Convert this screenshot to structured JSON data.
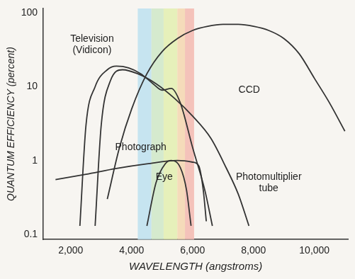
{
  "chart_data": {
    "type": "line",
    "x_label": "WAVELENGTH (angstroms)",
    "y_label": "QUANTUM EFFICIENCY (percent)",
    "log": "y",
    "grid": false,
    "xlim": [
      1100,
      11100
    ],
    "xticks": [
      {
        "value": 2000,
        "label": "2,000"
      },
      {
        "value": 4000,
        "label": "4,000"
      },
      {
        "value": 6000,
        "label": "6,000"
      },
      {
        "value": 8000,
        "label": "8,000"
      },
      {
        "value": 10000,
        "label": "10,000"
      }
    ],
    "ylim": [
      0.085,
      115
    ],
    "yticks": [
      0.1,
      1,
      10,
      100
    ],
    "series": [
      {
        "name": "Television (Vidicon)",
        "color": "#333333",
        "x": [
          2300,
          2500,
          2800,
          3200,
          3500,
          3900,
          4300,
          4700,
          5000,
          5300,
          5600,
          6000,
          6400,
          6650
        ],
        "values": [
          0.13,
          3,
          10,
          17,
          19,
          18,
          15,
          11,
          9,
          9.5,
          6,
          1.5,
          0.4,
          0.13
        ]
      },
      {
        "name": "Photomultiplier tube",
        "color": "#333333",
        "x": [
          2800,
          3000,
          3300,
          3700,
          4200,
          4800,
          5400,
          6000,
          6600,
          7100,
          7500,
          7850
        ],
        "values": [
          0.13,
          3,
          12,
          17,
          15,
          11,
          7,
          4,
          2,
          0.8,
          0.35,
          0.13
        ]
      },
      {
        "name": "CCD",
        "color": "#333333",
        "x": [
          3200,
          3600,
          4000,
          4500,
          5000,
          5500,
          6000,
          6500,
          7000,
          7500,
          8000,
          8500,
          9000,
          9500,
          10000,
          10500,
          11000
        ],
        "values": [
          0.3,
          1.5,
          5,
          15,
          30,
          45,
          58,
          66,
          70,
          70,
          66,
          58,
          45,
          28,
          13,
          6,
          2.5
        ]
      },
      {
        "name": "Photograph",
        "color": "#333333",
        "x": [
          1500,
          2500,
          3500,
          4500,
          5500,
          6000,
          6200,
          6350,
          6450
        ],
        "values": [
          0.55,
          0.65,
          0.78,
          0.9,
          1.0,
          0.95,
          0.85,
          0.4,
          0.15
        ]
      },
      {
        "name": "Eye",
        "color": "#333333",
        "x": [
          4500,
          4800,
          5100,
          5300,
          5600,
          5800,
          5950
        ],
        "values": [
          0.13,
          0.5,
          0.9,
          1.0,
          0.8,
          0.4,
          0.13
        ]
      }
    ],
    "annotations": [
      {
        "lines": [
          "Television",
          "(Vidicon)"
        ],
        "x": 2700,
        "y": 37
      },
      {
        "lines": [
          "CCD"
        ],
        "x": 7860,
        "y": 9
      },
      {
        "lines": [
          "Photograph"
        ],
        "x": 4300,
        "y": 1.5
      },
      {
        "lines": [
          "Eye"
        ],
        "x": 5070,
        "y": 0.6
      },
      {
        "lines": [
          "Photomultiplier",
          "tube"
        ],
        "x": 8500,
        "y": 0.5
      }
    ],
    "spectrum_bands": [
      {
        "from": 4200,
        "to": 4650,
        "color": "#bde0f0"
      },
      {
        "from": 4650,
        "to": 5050,
        "color": "#cfe8c8"
      },
      {
        "from": 5050,
        "to": 5500,
        "color": "#e3eeb0"
      },
      {
        "from": 5500,
        "to": 5750,
        "color": "#f5d6b0"
      },
      {
        "from": 5750,
        "to": 6050,
        "color": "#f3b8b0"
      }
    ]
  }
}
